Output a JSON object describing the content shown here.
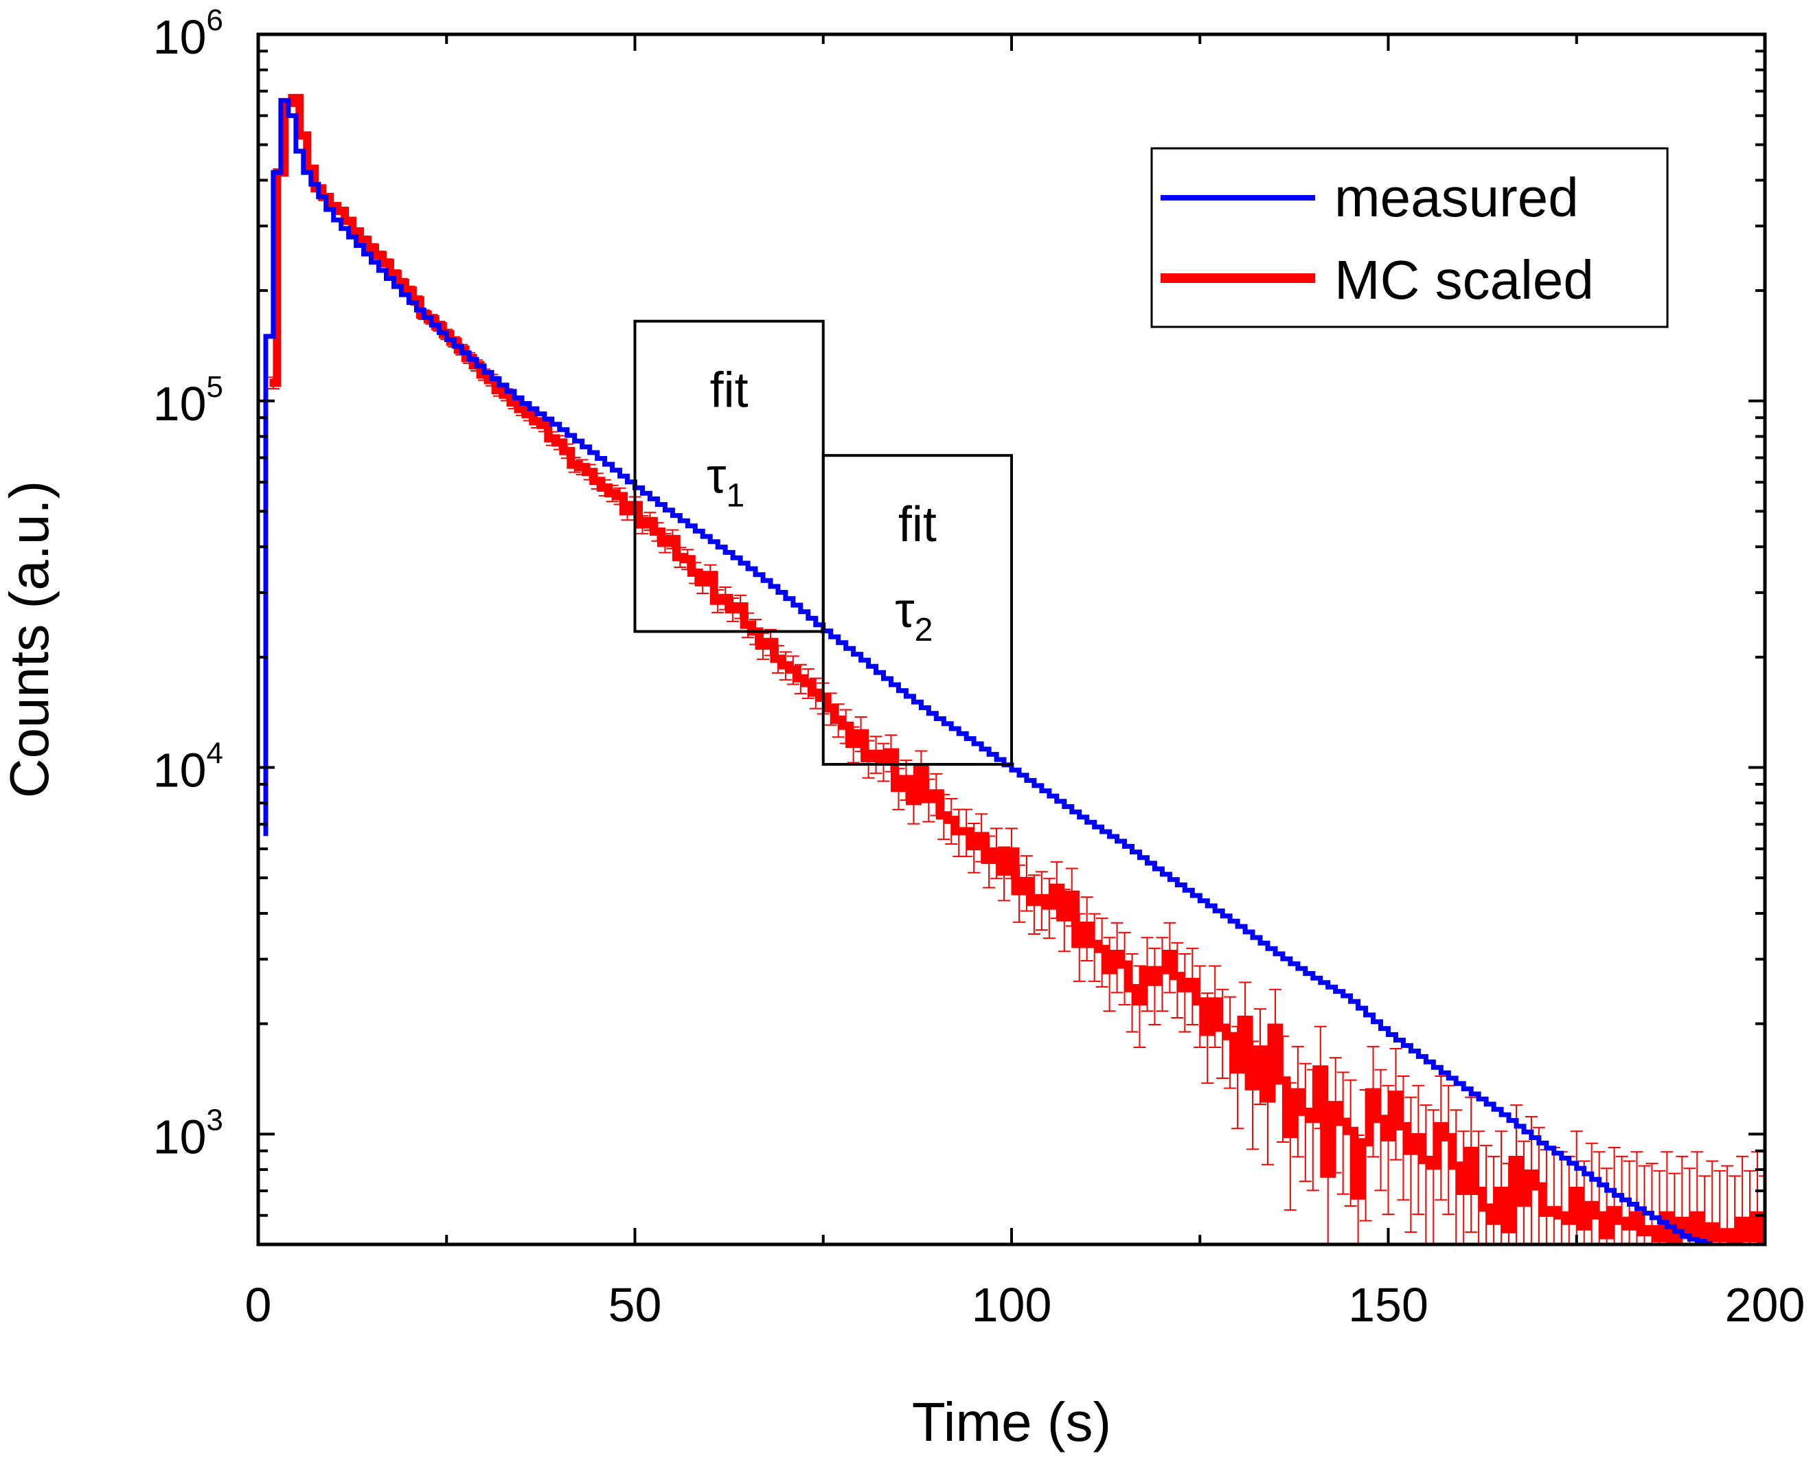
{
  "chart_data": {
    "type": "line",
    "title": "",
    "xlabel": "Time (s)",
    "ylabel": "Counts (a.u.)",
    "xlim": [
      0,
      200
    ],
    "ylim": [
      500,
      1000000
    ],
    "yscale": "log",
    "x_ticks": [
      {
        "value": 0,
        "label": "0"
      },
      {
        "value": 50,
        "label": "50"
      },
      {
        "value": 100,
        "label": "100"
      },
      {
        "value": 150,
        "label": "150"
      },
      {
        "value": 200,
        "label": "200"
      }
    ],
    "y_ticks": [
      {
        "value": 1000,
        "base": "10",
        "exp": "3"
      },
      {
        "value": 10000,
        "base": "10",
        "exp": "4"
      },
      {
        "value": 100000,
        "base": "10",
        "exp": "5"
      },
      {
        "value": 1000000,
        "base": "10",
        "exp": "6"
      }
    ],
    "legend": {
      "position": "top-right",
      "entries": [
        {
          "name": "measured",
          "color": "#0000ff"
        },
        {
          "name": "MC scaled",
          "color": "#ff0000"
        }
      ]
    },
    "fit_regions": [
      {
        "label": "fit",
        "tau_symbol": "τ",
        "tau_sub": "1",
        "x_range": [
          50,
          75
        ],
        "y_range": [
          23500,
          165000
        ]
      },
      {
        "label": "fit",
        "tau_symbol": "τ",
        "tau_sub": "2",
        "x_range": [
          75,
          100
        ],
        "y_range": [
          10200,
          71000
        ]
      }
    ],
    "series": [
      {
        "name": "measured",
        "color": "#0000ff",
        "style": "step",
        "points": [
          [
            1,
            6500
          ],
          [
            1.5,
            150000
          ],
          [
            2,
            150000
          ],
          [
            2.5,
            420000
          ],
          [
            3,
            420000
          ],
          [
            3.5,
            660000
          ],
          [
            4.5,
            600000
          ],
          [
            5.5,
            480000
          ],
          [
            6.5,
            420000
          ],
          [
            7.5,
            390000
          ],
          [
            10,
            320000
          ],
          [
            15,
            245000
          ],
          [
            20,
            190000
          ],
          [
            25,
            150000
          ],
          [
            30,
            122000
          ],
          [
            35,
            100000
          ],
          [
            40,
            85000
          ],
          [
            45,
            71000
          ],
          [
            50,
            59000
          ],
          [
            55,
            49500
          ],
          [
            60,
            42000
          ],
          [
            65,
            35500
          ],
          [
            70,
            29500
          ],
          [
            75,
            24000
          ],
          [
            80,
            20000
          ],
          [
            85,
            16500
          ],
          [
            90,
            13800
          ],
          [
            95,
            11800
          ],
          [
            100,
            10000
          ],
          [
            105,
            8500
          ],
          [
            110,
            7200
          ],
          [
            115,
            6200
          ],
          [
            120,
            5200
          ],
          [
            125,
            4400
          ],
          [
            130,
            3750
          ],
          [
            135,
            3150
          ],
          [
            140,
            2700
          ],
          [
            145,
            2350
          ],
          [
            150,
            1900
          ],
          [
            155,
            1600
          ],
          [
            160,
            1350
          ],
          [
            165,
            1150
          ],
          [
            170,
            960
          ],
          [
            175,
            820
          ],
          [
            180,
            690
          ],
          [
            185,
            600
          ],
          [
            190,
            520
          ],
          [
            193,
            500
          ]
        ]
      },
      {
        "name": "MC scaled",
        "color": "#ff0000",
        "style": "step",
        "x_start": 1.5,
        "bin_width": 1,
        "values": [
          112000,
          420000,
          650000,
          670000,
          530000,
          430000,
          380000,
          360000,
          340000,
          330000,
          310000,
          290000,
          275000,
          262000,
          250000,
          238000,
          222000,
          210000,
          200000,
          188000,
          172000,
          167000,
          160000,
          152000,
          145000,
          138000,
          131000,
          125000,
          118000,
          114000,
          107000,
          104000,
          99000,
          95000,
          92000,
          88000,
          86000,
          79000,
          77000,
          73000,
          67000,
          66000,
          64000,
          60500,
          58000,
          56000,
          55000,
          50000,
          52000,
          46000,
          47000,
          44000,
          41000,
          42000,
          37500,
          37000,
          34000,
          32000,
          33500,
          28500,
          29000,
          27000,
          27500,
          24500,
          23500,
          21500,
          22000,
          19800,
          19000,
          18500,
          17500,
          17000,
          16000,
          15500,
          14500,
          13500,
          13000,
          11600,
          12400,
          10600,
          10900,
          10400,
          11000,
          8800,
          9300,
          8100,
          9900,
          8200,
          8500,
          7400,
          7200,
          6700,
          6700,
          6100,
          6500,
          5600,
          5900,
          5200,
          5900,
          4600,
          4900,
          4300,
          4400,
          4200,
          4700,
          3900,
          4500,
          3300,
          3700,
          3300,
          3200,
          2800,
          3100,
          2900,
          2500,
          2300,
          2800,
          2600,
          2800,
          3100,
          2700,
          2500,
          2600,
          2300,
          1900,
          2300,
          1950,
          1850,
          1500,
          2050,
          1350,
          1700,
          1250,
          1950,
          1400,
          1000,
          1300,
          1150,
          1100,
          1500,
          780,
          1200,
          1080,
          1020,
          680,
          950,
          1300,
          1100,
          980,
          1280,
          1050,
          900,
          980,
          850,
          820,
          1050,
          980,
          820,
          700,
          900,
          700,
          630,
          580,
          700,
          550,
          850,
          650,
          780,
          720,
          610,
          620,
          600,
          580,
          700,
          560,
          640,
          600,
          530,
          620,
          580,
          560,
          600,
          540,
          550,
          520,
          600,
          510,
          580,
          530,
          600,
          500,
          560,
          520,
          540,
          500,
          580,
          520,
          600,
          500,
          560
        ]
      }
    ]
  }
}
